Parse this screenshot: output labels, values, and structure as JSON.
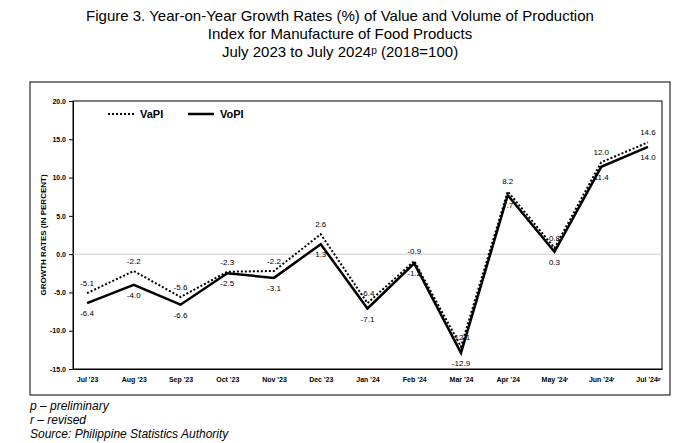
{
  "chart_data": {
    "type": "line",
    "title": [
      "Figure 3. Year-on-Year Growth Rates (%) of Value and Volume of Production",
      "Index for Manufacture of Food Products",
      "July 2023 to July 2024ᵖ (2018=100)"
    ],
    "y_label": "GROWTH RATES (IN PERCENT)",
    "categories": [
      "Jul '23",
      "Aug '23",
      "Sep '23",
      "Oct '23",
      "Nov '23",
      "Dec '23",
      "Jan '24",
      "Feb '24",
      "Mar '24",
      "Apr '24",
      "May '24ʳ",
      "Jun '24ʳ",
      "Jul '24ᵖ"
    ],
    "series": [
      {
        "name": "VaPI",
        "color": "#000000",
        "line_style": "dotted",
        "values": [
          -5.1,
          -2.2,
          -5.6,
          -2.3,
          -2.2,
          2.6,
          -6.4,
          -0.9,
          -12.1,
          8.2,
          0.8,
          12.0,
          14.6
        ],
        "value_labels": [
          "-5.1",
          "-2.2",
          "-5.6",
          "-2.3",
          "-2.2",
          "2.6",
          "-6.4",
          "-0.9",
          "-12.1",
          "8.2",
          "0.8",
          "12.0",
          "14.6"
        ]
      },
      {
        "name": "VoPI",
        "color": "#000000",
        "line_style": "solid",
        "values": [
          -6.4,
          -4.0,
          -6.6,
          -2.5,
          -3.1,
          1.3,
          -7.1,
          -1.2,
          -12.9,
          7.7,
          0.3,
          11.4,
          14.0
        ],
        "value_labels": [
          "-6.4",
          "-4.0",
          "-6.6",
          "-2.5",
          "-3.1",
          "1.3",
          "-7.1",
          "-1.2",
          "-12.9",
          "7.7",
          "0.3",
          "11.4",
          "14.0"
        ]
      }
    ],
    "ylim": [
      -15,
      20
    ],
    "yticks": [
      {
        "value": -15,
        "label": "-15.0"
      },
      {
        "value": -10,
        "label": "-10.0"
      },
      {
        "value": -5,
        "label": "-5.0"
      },
      {
        "value": 0,
        "label": "0.0"
      },
      {
        "value": 5,
        "label": "5.0"
      },
      {
        "value": 10,
        "label": "10.0"
      },
      {
        "value": 15,
        "label": "15.0"
      },
      {
        "value": 20,
        "label": "20.0"
      }
    ],
    "grid": false,
    "legend": "upper left",
    "data_labels": true,
    "notes": [
      "p – preliminary",
      "r – revised",
      "Source: Philippine Statistics Authority"
    ]
  }
}
